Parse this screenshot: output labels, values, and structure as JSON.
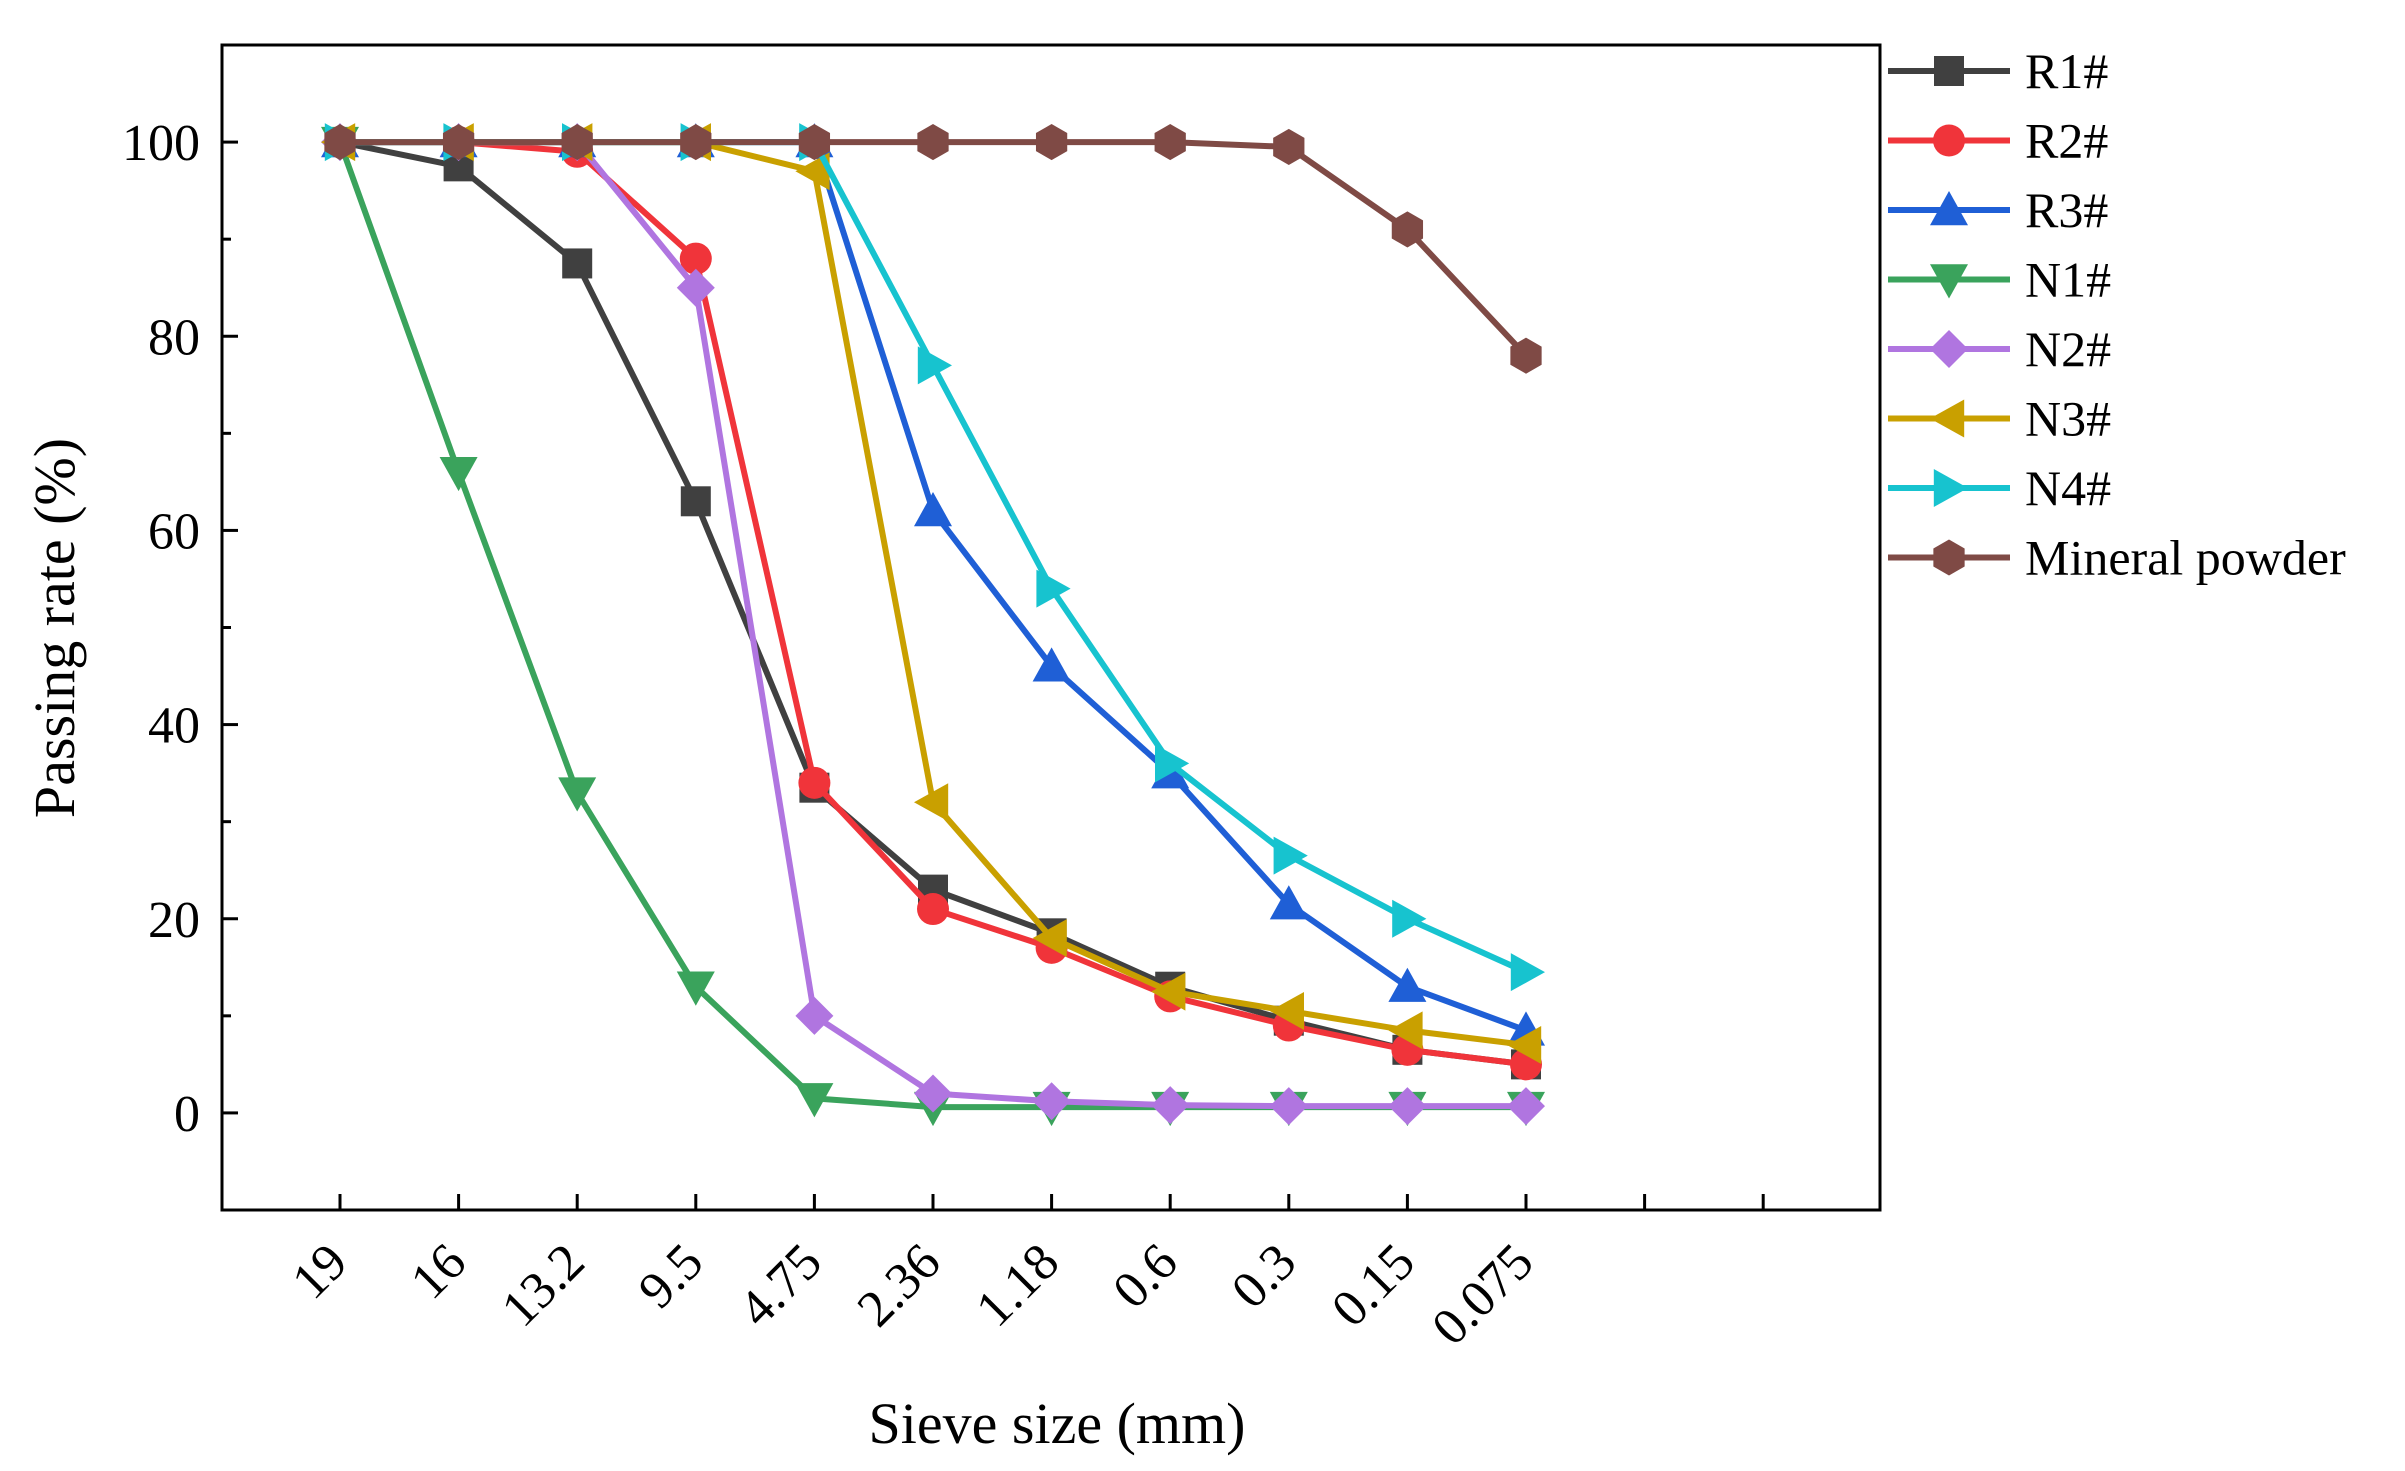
{
  "chart_data": {
    "type": "line",
    "title": "",
    "xlabel": "Sieve size (mm)",
    "ylabel": "Passing rate (%)",
    "categories": [
      "19",
      "16",
      "13.2",
      "9.5",
      "4.75",
      "2.36",
      "1.18",
      "0.6",
      "0.3",
      "0.15",
      "0.075"
    ],
    "ylim": [
      -10,
      110
    ],
    "yticks": [
      0,
      20,
      40,
      60,
      80,
      100
    ],
    "legend_position": "right",
    "grid": false,
    "series": [
      {
        "name": "R1#",
        "color": "#404040",
        "marker": "square",
        "values": [
          100,
          97.5,
          87.5,
          63,
          33.5,
          23,
          18.5,
          13,
          9.5,
          6.5,
          5
        ]
      },
      {
        "name": "R2#",
        "color": "#f0343a",
        "marker": "circle",
        "values": [
          100,
          100,
          99,
          88,
          34,
          21,
          17,
          12,
          9,
          6.5,
          5
        ]
      },
      {
        "name": "R3#",
        "color": "#1f5fd6",
        "marker": "triangle-up",
        "values": [
          100,
          100,
          100,
          100,
          100,
          62,
          46,
          35,
          21.5,
          13,
          8.5
        ]
      },
      {
        "name": "N1#",
        "color": "#3aa35c",
        "marker": "triangle-down",
        "values": [
          100,
          66,
          33,
          13,
          1.5,
          0.6,
          0.6,
          0.6,
          0.6,
          0.6,
          0.6
        ]
      },
      {
        "name": "N2#",
        "color": "#b075e0",
        "marker": "diamond",
        "values": [
          100,
          100,
          100,
          85,
          10,
          2,
          1.2,
          0.8,
          0.7,
          0.7,
          0.7
        ]
      },
      {
        "name": "N3#",
        "color": "#c9a000",
        "marker": "triangle-left",
        "values": [
          100,
          100,
          100,
          100,
          97,
          32,
          18,
          12.5,
          10.5,
          8.5,
          7
        ]
      },
      {
        "name": "N4#",
        "color": "#17c3cf",
        "marker": "triangle-right",
        "values": [
          100,
          100,
          100,
          100,
          100,
          77,
          54,
          36,
          26.5,
          20,
          14.5
        ]
      },
      {
        "name": "Mineral powder",
        "color": "#7f4a45",
        "marker": "hexagon",
        "values": [
          100,
          100,
          100,
          100,
          100,
          100,
          100,
          100,
          99.5,
          91,
          78
        ]
      }
    ]
  }
}
